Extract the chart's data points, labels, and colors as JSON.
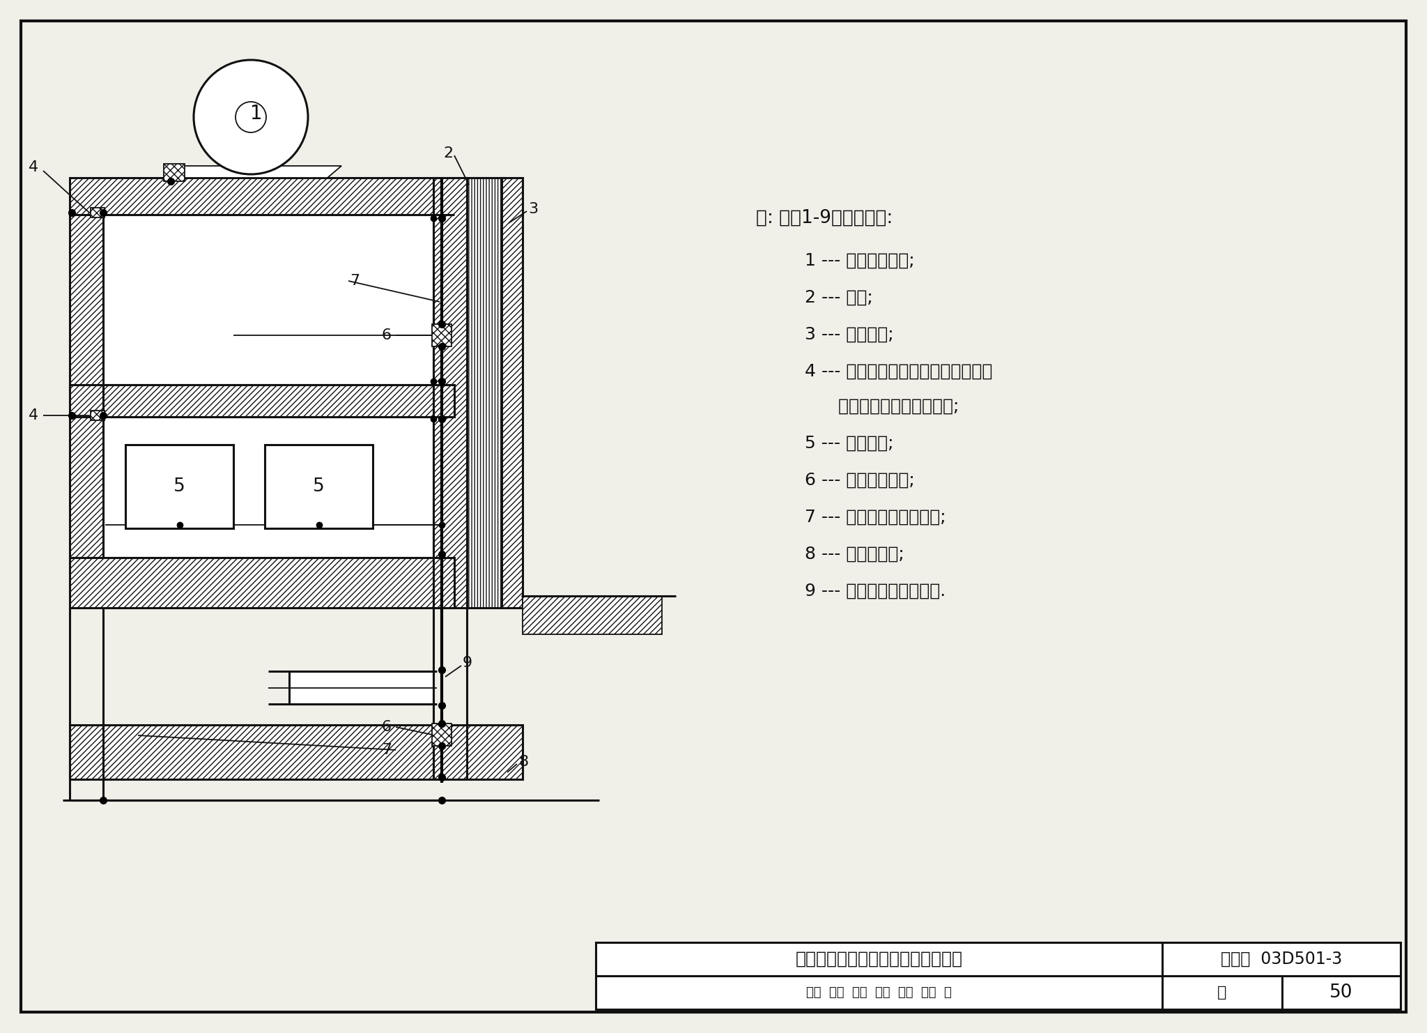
{
  "title": "建筑物内与钢筋做等电位连接的例子",
  "figure_num": "03D501-3",
  "page": "50",
  "note_title": "注: 图中1-9的标注代表:",
  "notes": [
    [
      "1 --- 大型用电设备;"
    ],
    [
      "2 --- 钢柱;"
    ],
    [
      "3 --- 金属立面;"
    ],
    [
      "4 --- 用电设备与公用接地系统在地面",
      "      上预埋件的等电位连接点;"
    ],
    [
      "5 --- 用电设备;"
    ],
    [
      "6 --- 等电位连接带;"
    ],
    [
      "7 --- 钢筋混凝土内的钢筋;"
    ],
    [
      "8 --- 基础接地体;"
    ],
    [
      "9 --- 各种管线的共用入口."
    ]
  ],
  "tb_title": "建筑物内与钢筋做等电位连接的例子",
  "tb_atlas": "图集号",
  "tb_atlas_num": "03D501-3",
  "tb_page_label": "页",
  "tb_page_num": "50",
  "tb_bottom_text": "审核  批复  对量  及规  设计  标维  审",
  "bg_color": "#f0efe8",
  "line_color": "#111111"
}
